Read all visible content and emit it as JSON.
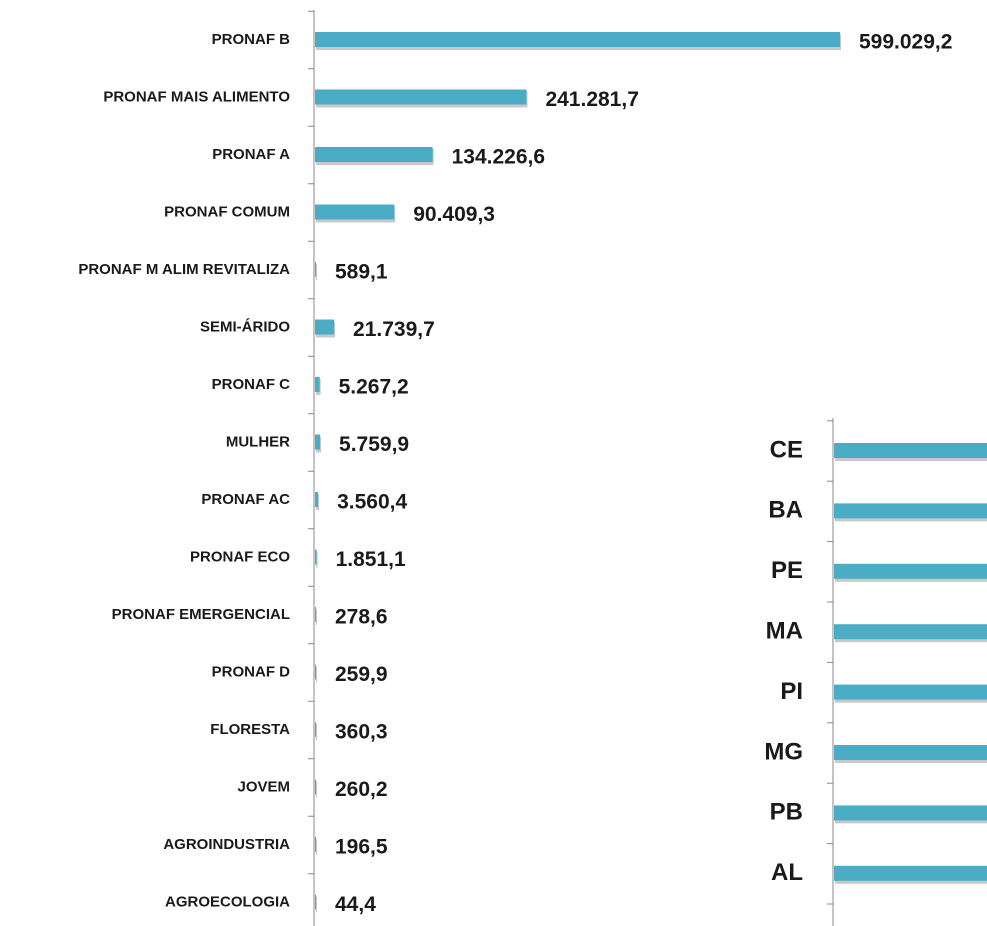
{
  "chart_data": [
    {
      "type": "bar",
      "orientation": "horizontal",
      "color": "#4bacc6",
      "categories": [
        "PRONAF B",
        "PRONAF MAIS ALIMENTO",
        "PRONAF A",
        "PRONAF COMUM",
        "PRONAF M ALIM REVITALIZA",
        "SEMI-ÁRIDO",
        "PRONAF C",
        "MULHER",
        "PRONAF AC",
        "PRONAF ECO",
        "PRONAF EMERGENCIAL",
        "PRONAF D",
        "FLORESTA",
        "JOVEM",
        "AGROINDUSTRIA",
        "AGROECOLOGIA"
      ],
      "values": [
        599029.2,
        241281.7,
        134226.6,
        90409.3,
        589.1,
        21739.7,
        5267.2,
        5759.9,
        3560.4,
        1851.1,
        278.6,
        259.9,
        360.3,
        260.2,
        196.5,
        44.4
      ],
      "value_labels": [
        "599.029,2",
        "241.281,7",
        "134.226,6",
        "90.409,3",
        "589,1",
        "21.739,7",
        "5.267,2",
        "5.759,9",
        "3.560,4",
        "1.851,1",
        "278,6",
        "259,9",
        "360,3",
        "260,2",
        "196,5",
        "44,4"
      ]
    },
    {
      "type": "bar",
      "orientation": "horizontal",
      "color": "#4bacc6",
      "categories": [
        "CE",
        "BA",
        "PE",
        "MA",
        "PI",
        "MG",
        "PB",
        "AL"
      ],
      "values": [
        null,
        null,
        null,
        null,
        null,
        null,
        null,
        null
      ]
    }
  ]
}
